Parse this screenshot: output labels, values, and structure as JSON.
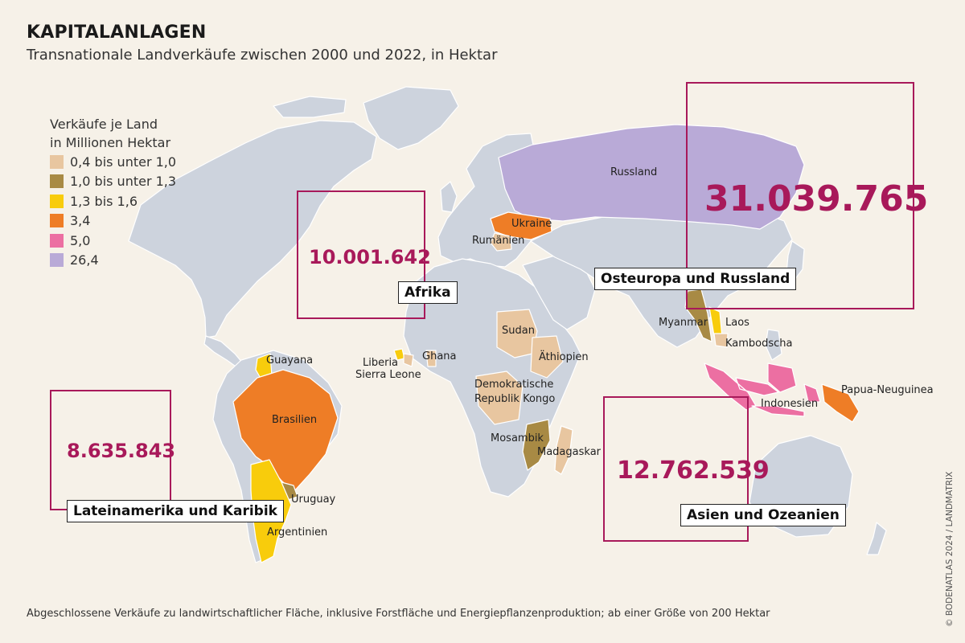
{
  "header": {
    "title": "KAPITALANLAGEN",
    "subtitle": "Transnationale Landverkäufe zwischen 2000 und 2022, in Hektar"
  },
  "legend": {
    "title_line1": "Verkäufe je Land",
    "title_line2": "in Millionen Hektar",
    "items": [
      {
        "label": "0,4 bis unter 1,0",
        "color": "#e8c6a0"
      },
      {
        "label": "1,0 bis unter 1,3",
        "color": "#a88a44"
      },
      {
        "label": "1,3 bis 1,6",
        "color": "#f8cc0c"
      },
      {
        "label": "3,4",
        "color": "#ee7d26"
      },
      {
        "label": "5,0",
        "color": "#ec6fa2"
      },
      {
        "label": "26,4",
        "color": "#b9aad7"
      }
    ]
  },
  "colors": {
    "land": "#cdd3dd",
    "frame_accent": "#a8195a",
    "background": "#f6f1e8"
  },
  "regions": {
    "osteuropa": {
      "name": "Osteuropa und Russland",
      "value": "31.039.765"
    },
    "afrika": {
      "name": "Afrika",
      "value": "10.001.642"
    },
    "lateinamerika": {
      "name": "Lateinamerika und Karibik",
      "value": "8.635.843"
    },
    "asien": {
      "name": "Asien und Ozeanien",
      "value": "12.762.539"
    }
  },
  "countries": {
    "russland": "Russland",
    "ukraine": "Ukraine",
    "rumaenien": "Rumänien",
    "myanmar": "Myanmar",
    "laos": "Laos",
    "kambodscha": "Kambodscha",
    "indonesien": "Indonesien",
    "papua": "Papua-Neuguinea",
    "sudan": "Sudan",
    "aethiopien": "Äthiopien",
    "ghana": "Ghana",
    "liberia": "Liberia",
    "sierra_leone": "Sierra Leone",
    "kongo_line1": "Demokratische",
    "kongo_line2": "Republik Kongo",
    "mosambik": "Mosambik",
    "madagaskar": "Madagaskar",
    "guayana": "Guayana",
    "brasilien": "Brasilien",
    "uruguay": "Uruguay",
    "argentinien": "Argentinien"
  },
  "footnote": "Abgeschlossene Verkäufe zu landwirtschaftlicher Fläche, inklusive Forstfläche und Energiepflanzenproduktion; ab einer Größe von 200 Hektar",
  "credit": "© BODENATLAS 2024 / LANDMATRIX"
}
